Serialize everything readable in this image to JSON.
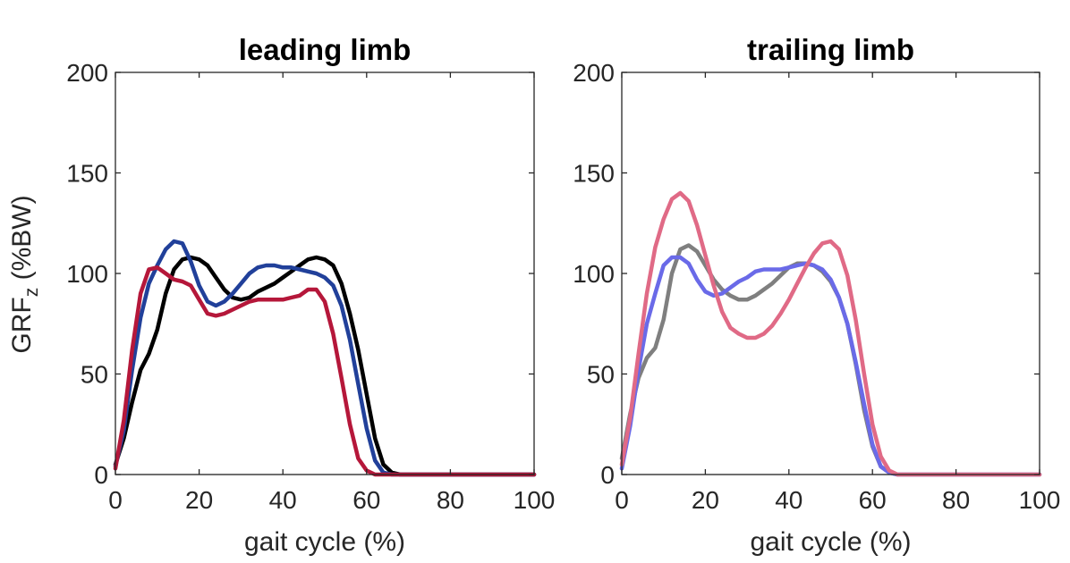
{
  "y_label_main": "GRF",
  "y_label_sub": "z",
  "y_label_unit": " (%BW)",
  "chart_data": [
    {
      "type": "line",
      "title": "leading limb",
      "xlabel": "gait cycle (%)",
      "xlim": [
        0,
        100
      ],
      "ylim": [
        0,
        200
      ],
      "xticks": [
        0,
        20,
        40,
        60,
        80,
        100
      ],
      "yticks": [
        0,
        50,
        100,
        150,
        200
      ],
      "series": [
        {
          "color": "#000000",
          "x": [
            0,
            2,
            4,
            6,
            8,
            10,
            12,
            14,
            16,
            18,
            20,
            22,
            24,
            26,
            28,
            30,
            32,
            34,
            36,
            38,
            40,
            42,
            44,
            46,
            48,
            50,
            52,
            54,
            56,
            58,
            60,
            62,
            64,
            66,
            68,
            70,
            80,
            90,
            100
          ],
          "y": [
            5,
            18,
            36,
            52,
            60,
            72,
            90,
            102,
            107,
            108,
            107,
            104,
            98,
            92,
            88,
            87,
            88,
            91,
            93,
            95,
            98,
            101,
            104,
            107,
            108,
            107,
            104,
            95,
            80,
            62,
            40,
            18,
            5,
            1,
            0,
            0,
            0,
            0,
            0
          ]
        },
        {
          "color": "#21409a",
          "x": [
            0,
            2,
            4,
            6,
            8,
            10,
            12,
            14,
            16,
            18,
            20,
            22,
            24,
            26,
            28,
            30,
            32,
            34,
            36,
            38,
            40,
            42,
            44,
            46,
            48,
            50,
            52,
            54,
            56,
            58,
            60,
            62,
            64,
            66,
            68,
            70,
            80,
            90,
            100
          ],
          "y": [
            4,
            22,
            52,
            78,
            95,
            104,
            112,
            116,
            115,
            106,
            94,
            86,
            84,
            86,
            90,
            95,
            100,
            103,
            104,
            104,
            103,
            103,
            102,
            101,
            100,
            98,
            94,
            84,
            67,
            45,
            23,
            7,
            1,
            0,
            0,
            0,
            0,
            0,
            0
          ]
        },
        {
          "color": "#b5173a",
          "x": [
            0,
            2,
            4,
            6,
            8,
            10,
            12,
            14,
            16,
            18,
            20,
            22,
            24,
            26,
            28,
            30,
            32,
            34,
            36,
            38,
            40,
            42,
            44,
            46,
            48,
            50,
            52,
            54,
            56,
            58,
            60,
            62,
            64,
            66,
            68,
            70,
            80,
            90,
            100
          ],
          "y": [
            3,
            27,
            62,
            90,
            102,
            103,
            100,
            97,
            96,
            94,
            87,
            80,
            79,
            80,
            82,
            84,
            86,
            87,
            87,
            87,
            87,
            88,
            89,
            92,
            92,
            86,
            70,
            48,
            25,
            8,
            2,
            0,
            0,
            0,
            0,
            0,
            0,
            0,
            0
          ]
        }
      ]
    },
    {
      "type": "line",
      "title": "trailing limb",
      "xlabel": "gait cycle (%)",
      "xlim": [
        0,
        100
      ],
      "ylim": [
        0,
        200
      ],
      "xticks": [
        0,
        20,
        40,
        60,
        80,
        100
      ],
      "yticks": [
        0,
        50,
        100,
        150,
        200
      ],
      "series": [
        {
          "color": "#7f7f7f",
          "x": [
            0,
            2,
            4,
            6,
            8,
            10,
            12,
            14,
            16,
            18,
            20,
            22,
            24,
            26,
            28,
            30,
            32,
            34,
            36,
            38,
            40,
            42,
            44,
            46,
            48,
            50,
            52,
            54,
            56,
            58,
            60,
            62,
            64,
            66,
            68,
            70,
            80,
            90,
            100
          ],
          "y": [
            8,
            30,
            48,
            58,
            63,
            77,
            100,
            112,
            114,
            111,
            104,
            97,
            92,
            89,
            87,
            87,
            89,
            92,
            95,
            99,
            103,
            105,
            105,
            104,
            101,
            96,
            88,
            75,
            55,
            32,
            14,
            4,
            1,
            0,
            0,
            0,
            0,
            0,
            0
          ]
        },
        {
          "color": "#6a6ae8",
          "x": [
            0,
            2,
            4,
            6,
            8,
            10,
            12,
            14,
            16,
            18,
            20,
            22,
            24,
            26,
            28,
            30,
            32,
            34,
            36,
            38,
            40,
            42,
            44,
            46,
            48,
            50,
            52,
            54,
            56,
            58,
            60,
            62,
            64,
            66,
            68,
            70,
            80,
            90,
            100
          ],
          "y": [
            3,
            24,
            52,
            75,
            90,
            104,
            108,
            108,
            105,
            97,
            91,
            89,
            90,
            93,
            96,
            98,
            101,
            102,
            102,
            102,
            103,
            104,
            105,
            104,
            102,
            97,
            88,
            75,
            56,
            35,
            15,
            4,
            1,
            0,
            0,
            0,
            0,
            0,
            0
          ]
        },
        {
          "color": "#e06a86",
          "x": [
            0,
            2,
            4,
            6,
            8,
            10,
            12,
            14,
            16,
            18,
            20,
            22,
            24,
            26,
            28,
            30,
            32,
            34,
            36,
            38,
            40,
            42,
            44,
            46,
            48,
            50,
            52,
            54,
            56,
            58,
            60,
            62,
            64,
            66,
            68,
            70,
            80,
            90,
            100
          ],
          "y": [
            5,
            28,
            60,
            90,
            113,
            127,
            137,
            140,
            136,
            124,
            109,
            94,
            81,
            73,
            70,
            68,
            68,
            70,
            74,
            80,
            87,
            95,
            103,
            110,
            115,
            116,
            112,
            99,
            77,
            50,
            25,
            9,
            2,
            0,
            0,
            0,
            0,
            0,
            0
          ]
        }
      ]
    }
  ]
}
